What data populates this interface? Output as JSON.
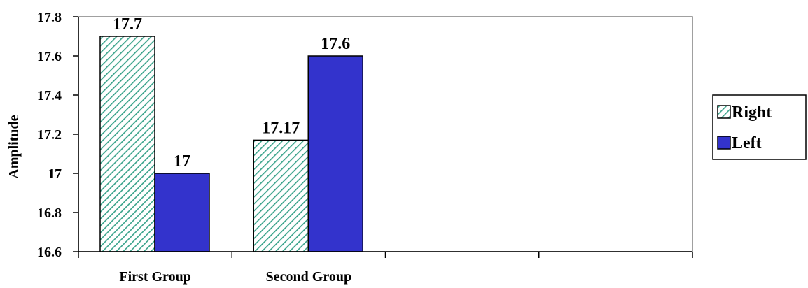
{
  "chart_data": {
    "type": "bar",
    "categories": [
      "First Group",
      "Second Group",
      "",
      ""
    ],
    "series": [
      {
        "name": "Right",
        "values": [
          17.7,
          17.17,
          null,
          null
        ],
        "color": "#ffffff",
        "pattern": "diagonal-hatch",
        "pattern_color": "#3aa38b"
      },
      {
        "name": "Left",
        "values": [
          17.0,
          17.6,
          null,
          null
        ],
        "color": "#3333cc"
      }
    ],
    "data_labels": [
      [
        "17.7",
        "17.17"
      ],
      [
        "17",
        "17.6"
      ]
    ],
    "title": "",
    "xlabel": "",
    "ylabel": "Amplitude",
    "ylim": [
      16.6,
      17.8
    ],
    "yticks": [
      "16.6",
      "16.8",
      "17",
      "17.2",
      "17.4",
      "17.6",
      "17.8"
    ],
    "grid": false,
    "legend": "right"
  }
}
